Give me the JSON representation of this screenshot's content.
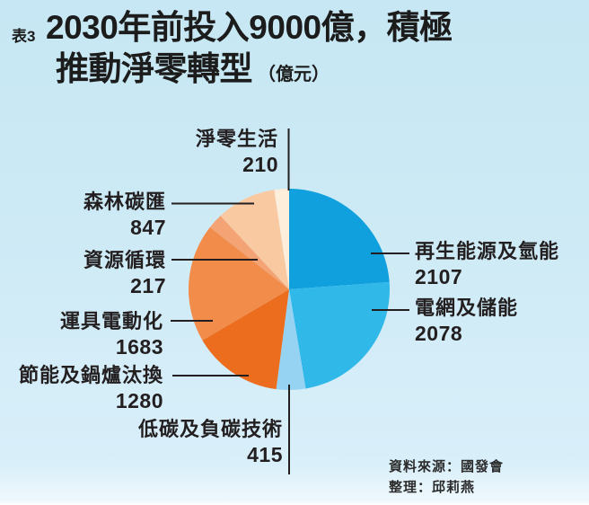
{
  "header": {
    "table_tag": "表3",
    "title_line1": "2030年前投入9000億，積極",
    "title_line2": "推動淨零轉型",
    "title_unit": "（億元）"
  },
  "source": {
    "line1": "資料來源：國發會",
    "line2": "整理：邱莉燕"
  },
  "colors": {
    "background_top": "#c6e7f3",
    "background_bottom": "#d9effa",
    "text": "#231f20",
    "leader_line": "#231f20"
  },
  "chart_data": {
    "type": "pie",
    "title": "2030年前投入9000億，積極推動淨零轉型（億元）",
    "unit": "億元",
    "start_angle": "12-oclock",
    "direction": "clockwise",
    "legend_position": "callout-labels",
    "slices": [
      {
        "label": "再生能源及氫能",
        "value": 2107,
        "color": "#10a0de"
      },
      {
        "label": "電網及儲能",
        "value": 2078,
        "color": "#30b8e9"
      },
      {
        "label": "低碳及負碳技術",
        "value": 415,
        "color": "#96d2f2"
      },
      {
        "label": "節能及鍋爐汰換",
        "value": 1280,
        "color": "#ed6d1f"
      },
      {
        "label": "運具電動化",
        "value": 1683,
        "color": "#f28c4a"
      },
      {
        "label": "資源循環",
        "value": 217,
        "color": "#f4a474"
      },
      {
        "label": "森林碳匯",
        "value": 847,
        "color": "#f9c9a2"
      },
      {
        "label": "淨零生活",
        "value": 210,
        "color": "#fceeda"
      }
    ]
  }
}
